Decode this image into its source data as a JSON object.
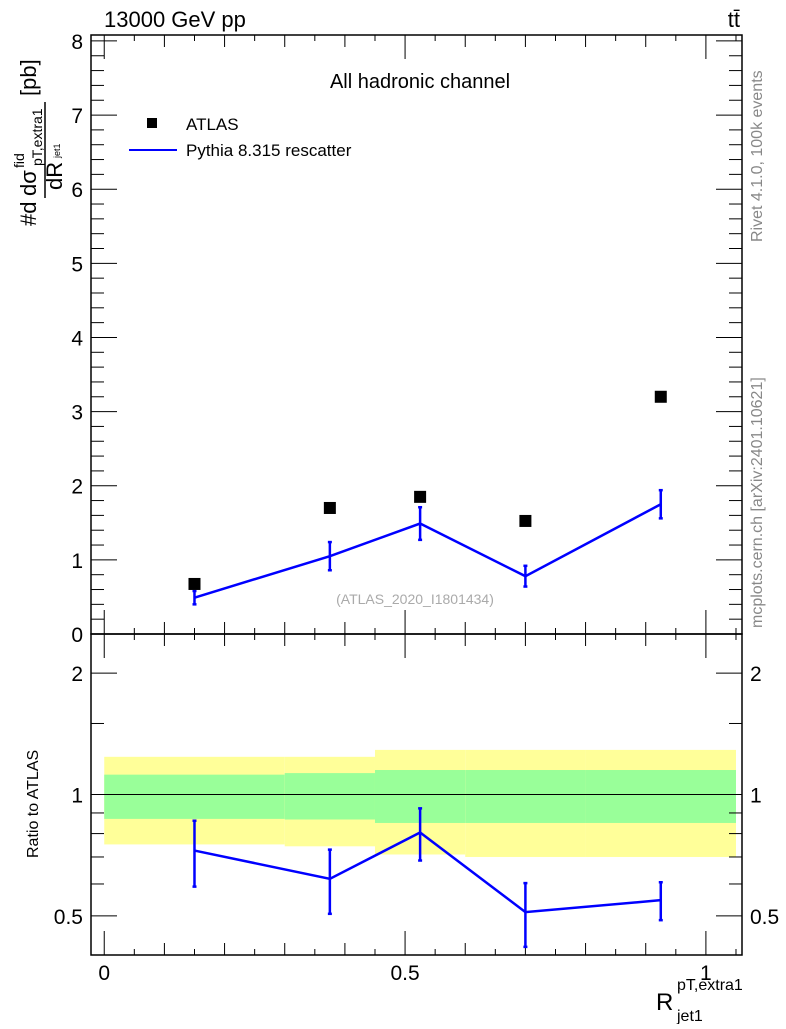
{
  "header": {
    "left": "13000 GeV pp",
    "right": "tt̄"
  },
  "side_text": {
    "rivet": "Rivet 4.1.0,  100k events",
    "mcplots": "mcplots.cern.ch [arXiv:2401.10621]"
  },
  "colors": {
    "data": "#000000",
    "mc": "#0000ff",
    "band_outer": "#ffff99",
    "band_inner": "#99ff99"
  },
  "chart_data": [
    {
      "type": "scatter",
      "title": "All hadronic channel",
      "annotation": "(ATLAS_2020_I1801434)",
      "ylabel_parts": {
        "prefix": "#d",
        "numerator": "dσ",
        "sup": "fid",
        "sub": "pT,extra1",
        "denominator": "dR",
        "den_sub": "jet1",
        "unit": "[pb]"
      },
      "xlim": [
        -0.022,
        1.06
      ],
      "ylim": [
        0,
        8.08
      ],
      "yticks": [
        "0",
        "1",
        "2",
        "3",
        "4",
        "5",
        "6",
        "7",
        "8"
      ],
      "legend": {
        "placement": "top-left",
        "entries": [
          "ATLAS",
          "Pythia 8.315 rescatter"
        ]
      },
      "bin_edges": [
        0,
        0.3,
        0.45,
        0.6,
        0.8,
        1.05
      ],
      "x": [
        0.15,
        0.375,
        0.525,
        0.7,
        0.925
      ],
      "series": [
        {
          "name": "ATLAS",
          "values": [
            0.675,
            1.7,
            1.85,
            1.525,
            3.2
          ]
        },
        {
          "name": "Pythia 8.315 rescatter",
          "values": [
            0.49,
            1.05,
            1.49,
            0.78,
            1.75
          ],
          "errors": [
            0.09,
            0.19,
            0.22,
            0.14,
            0.19
          ]
        }
      ]
    },
    {
      "type": "line",
      "ylabel": "Ratio to ATLAS",
      "xlabel": "R",
      "xlabel_sup": "pT,extra1",
      "xlabel_sub": "jet1",
      "yscale": "log",
      "ylim": [
        0.4,
        2.5
      ],
      "yticks": [
        "0.5",
        "1",
        "2"
      ],
      "xticks": [
        "0",
        "0.5",
        "1"
      ],
      "bands": {
        "outer_up": [
          1.24,
          1.24,
          1.29,
          1.29,
          1.29
        ],
        "outer_down": [
          0.752,
          0.744,
          0.71,
          0.7,
          0.7
        ],
        "inner_up": [
          1.12,
          1.13,
          1.15,
          1.15,
          1.15
        ],
        "inner_down": [
          0.87,
          0.867,
          0.85,
          0.85,
          0.85
        ]
      },
      "series": [
        {
          "name": "Pythia 8.315 rescatter",
          "values": [
            0.726,
            0.618,
            0.805,
            0.511,
            0.547
          ],
          "errors": [
            0.135,
            0.112,
            0.119,
            0.092,
            0.059
          ]
        }
      ]
    }
  ]
}
